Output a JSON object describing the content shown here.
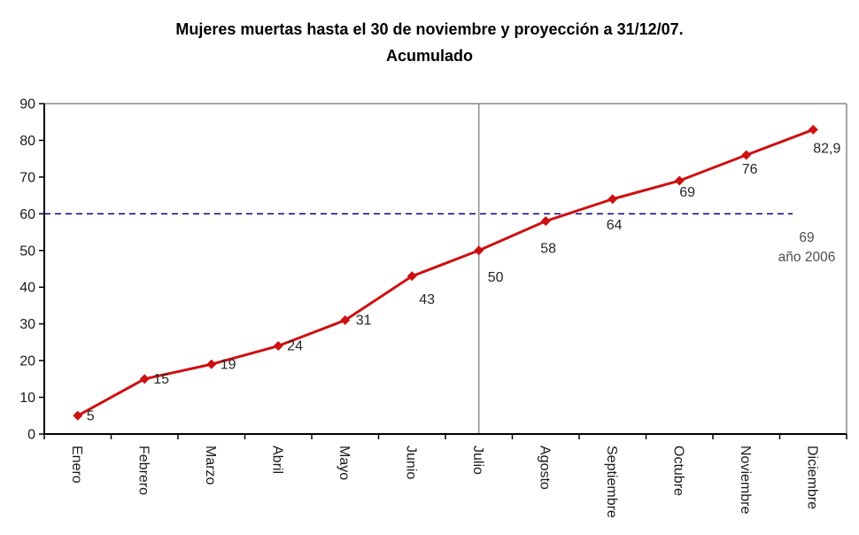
{
  "title": {
    "line1": "Mujeres muertas hasta el 30 de noviembre y proyección a 31/12/07.",
    "line2": "Acumulado"
  },
  "chart_data": {
    "type": "line",
    "categories": [
      "Enero",
      "Febrero",
      "Marzo",
      "Abril",
      "Mayo",
      "Junio",
      "Julio",
      "Agosto",
      "Septiembre",
      "Octubre",
      "Noviembre",
      "Diciembre"
    ],
    "values": [
      5,
      15,
      19,
      24,
      31,
      43,
      50,
      58,
      64,
      69,
      76,
      82.9
    ],
    "point_labels": [
      "5",
      "15",
      "19",
      "24",
      "31",
      "43",
      "50",
      "58",
      "64",
      "69",
      "76",
      "82,9"
    ],
    "title": "Mujeres muertas hasta el 30 de noviembre y proyección a 31/12/07. Acumulado",
    "xlabel": "",
    "ylabel": "",
    "ylim": [
      0,
      90
    ],
    "ytick_step": 10,
    "grid": "off",
    "legend": "none",
    "series_color": "#cc1111",
    "marker_shape": "diamond",
    "reference_line": {
      "value": 60,
      "color": "#000080",
      "style": "dashed"
    },
    "vertical_line": {
      "category": "Julio",
      "color": "#808080"
    },
    "annotation": {
      "line1": "69",
      "line2": "año 2006"
    },
    "plot_border_color": "#888888",
    "axis_color": "#000000"
  }
}
